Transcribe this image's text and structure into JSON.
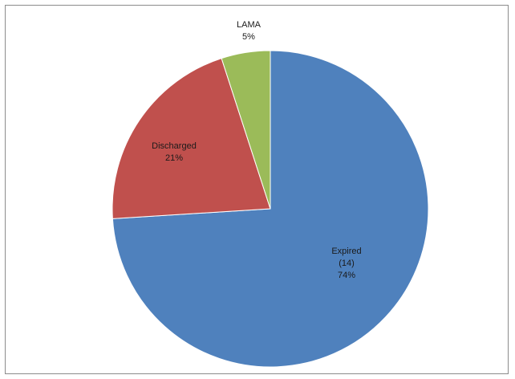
{
  "chart_data": {
    "type": "pie",
    "title": "",
    "slices": [
      {
        "name": "LAMA",
        "percent_label": "5%",
        "value": 5,
        "color": "#9BBB59"
      },
      {
        "name": "Discharged",
        "percent_label": "21%",
        "value": 21,
        "color": "#C0504D"
      },
      {
        "name": "Expired",
        "count_label": "(14)",
        "percent_label": "74%",
        "value": 74,
        "color": "#4F81BD"
      }
    ],
    "start_angle": "12 o'clock, clockwise order: Expired, Discharged, LAMA",
    "legend": "none (data labels on chart)"
  }
}
